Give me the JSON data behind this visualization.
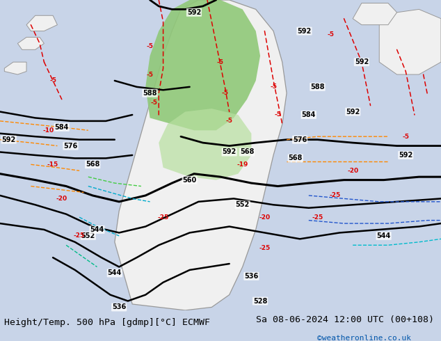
{
  "title_left": "Height/Temp. 500 hPa [gdmp][°C] ECMWF",
  "title_right": "Sa 08-06-2024 12:00 UTC (00+108)",
  "credit": "©weatheronline.co.uk",
  "bg_color": "#c8d4e8",
  "land_color": "#f0f0f0",
  "green_color": "#90c878",
  "fig_width": 6.34,
  "fig_height": 4.9,
  "dpi": 100,
  "bottom_bar_color": "#ffffff",
  "bottom_bar_height": 0.09,
  "title_fontsize": 9.5,
  "credit_fontsize": 8,
  "credit_color": "#0055aa"
}
